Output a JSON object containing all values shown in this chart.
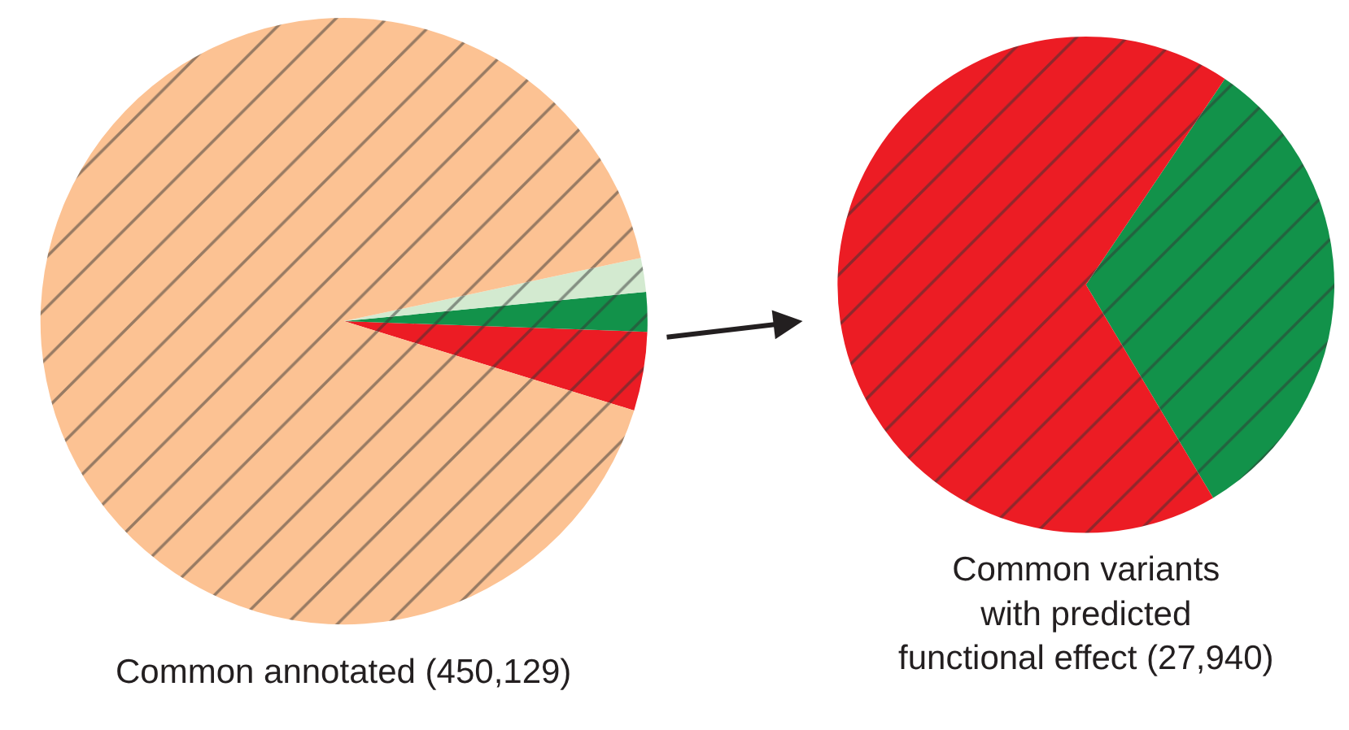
{
  "chart_data": [
    {
      "type": "pie",
      "title": "Common annotated (450,129)",
      "categories": [
        null,
        null,
        null,
        null
      ],
      "values": [
        4.2,
        2.1,
        1.8,
        91.9
      ],
      "colors": [
        "#ec1c24",
        "#12924a",
        "#d3ead0",
        "#fcc293"
      ]
    },
    {
      "type": "pie",
      "title": "Common variants\nwith predicted\nfunctional effect (27,940)",
      "categories": [
        null,
        null
      ],
      "values": [
        32,
        68
      ],
      "colors": [
        "#12924a",
        "#ec1c24"
      ]
    }
  ]
}
